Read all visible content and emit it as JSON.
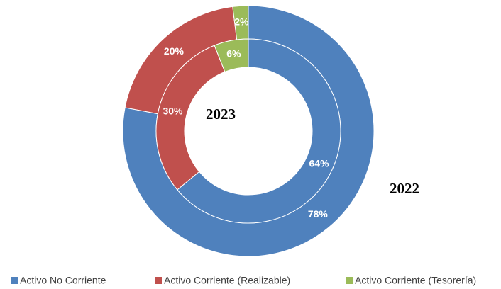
{
  "chart_data": {
    "type": "donut",
    "categories": [
      "Activo No Corriente",
      "Activo Corriente (Realizable)",
      "Activo Corriente (Tesorería)"
    ],
    "colors": [
      "#4f81bd",
      "#c0504d",
      "#9bbb59"
    ],
    "series": [
      {
        "name": "2022",
        "values": [
          78,
          20,
          2
        ],
        "value_labels": [
          "78%",
          "20%",
          "2%"
        ]
      },
      {
        "name": "2023",
        "values": [
          64,
          30,
          6
        ],
        "value_labels": [
          "64%",
          "30%",
          "6%"
        ]
      }
    ],
    "legend": "bottom"
  }
}
